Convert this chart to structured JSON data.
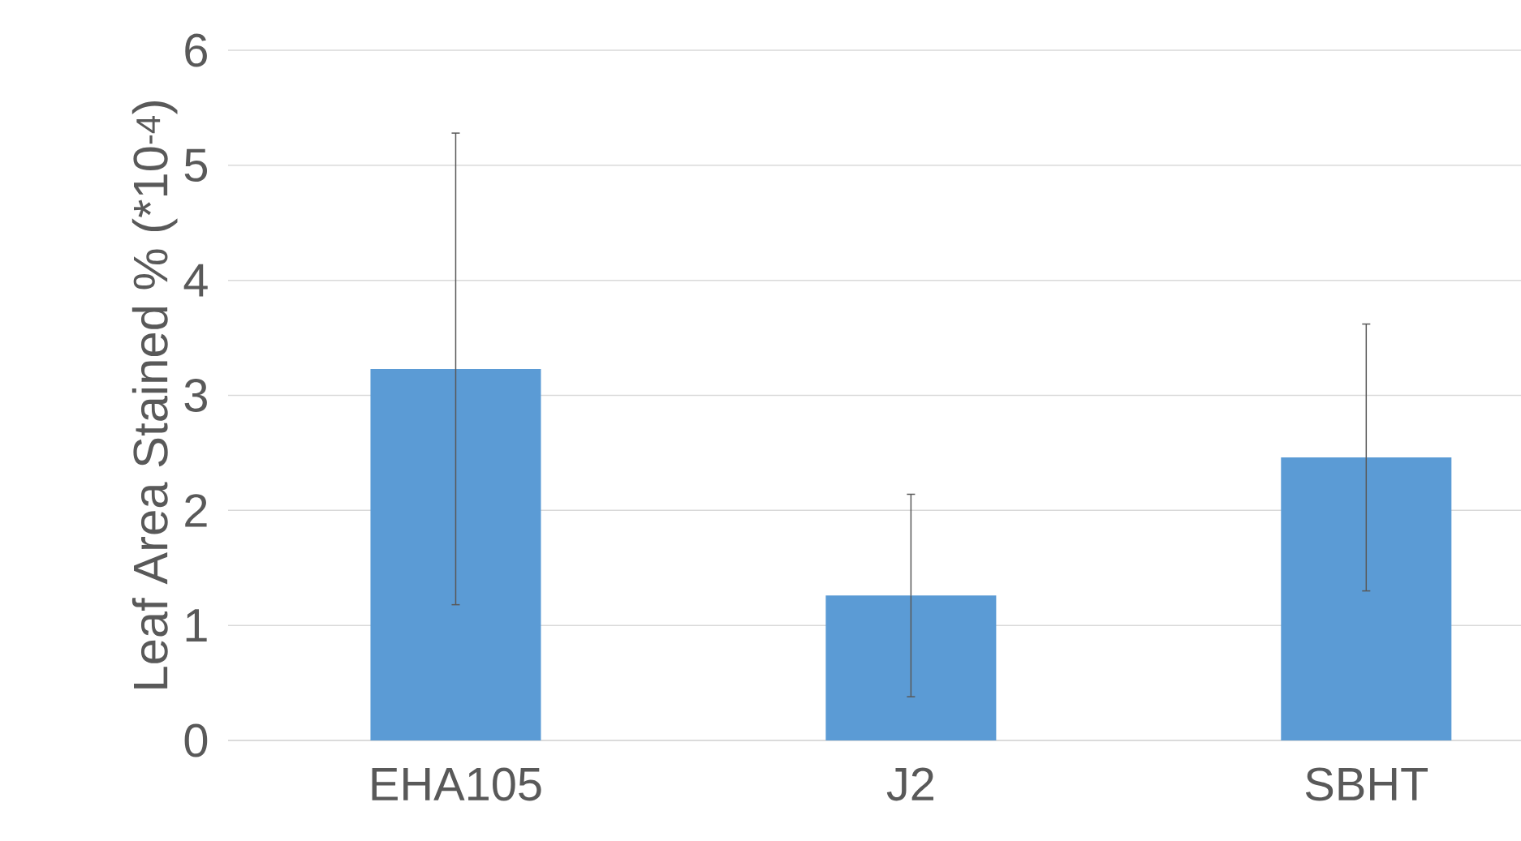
{
  "chart_data": {
    "type": "bar",
    "ylabel": "Leaf Area Stained % (*10$^{-4}$)",
    "categories": [
      "EHA105",
      "J2",
      "SBHT"
    ],
    "values": [
      3.23,
      1.26,
      2.46
    ],
    "errors": [
      2.05,
      0.88,
      1.16
    ],
    "color": "#5b9bd5",
    "ylim": [
      0,
      6
    ],
    "yticks": [
      0,
      1,
      2,
      3,
      4,
      5,
      6
    ],
    "grid": "y"
  }
}
